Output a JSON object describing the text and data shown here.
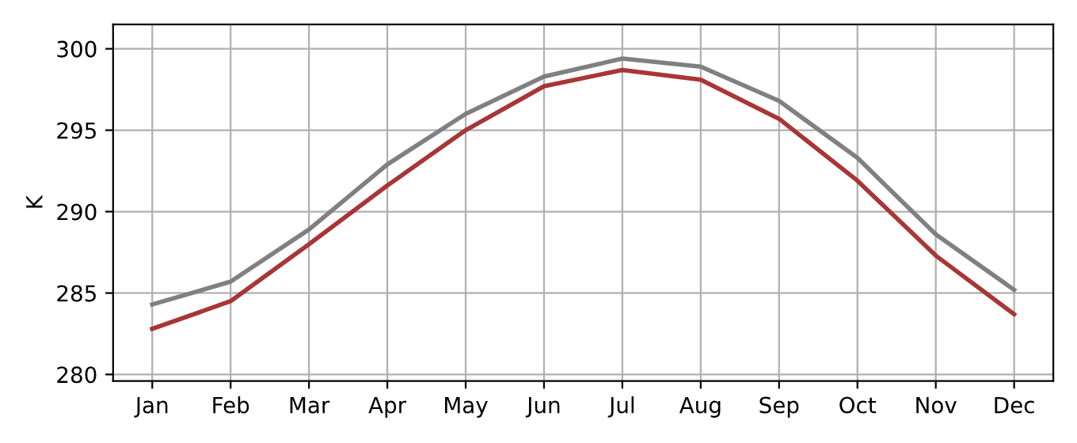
{
  "chart_data": {
    "type": "line",
    "ylabel": "K",
    "categories": [
      "Jan",
      "Feb",
      "Mar",
      "Apr",
      "May",
      "Jun",
      "Jul",
      "Aug",
      "Sep",
      "Oct",
      "Nov",
      "Dec"
    ],
    "series": [
      {
        "color": "#808080",
        "values": [
          284.3,
          285.7,
          288.9,
          292.9,
          296.0,
          298.3,
          299.4,
          298.9,
          296.8,
          293.3,
          288.6,
          285.2
        ]
      },
      {
        "color": "#a83636",
        "values": [
          282.8,
          284.5,
          288.0,
          291.6,
          295.0,
          297.7,
          298.7,
          298.1,
          295.7,
          291.9,
          287.3,
          283.7
        ]
      }
    ],
    "ylim": [
      279.6,
      301.5
    ],
    "yticks": [
      280,
      285,
      290,
      295,
      300
    ],
    "grid": true,
    "legend": false
  }
}
